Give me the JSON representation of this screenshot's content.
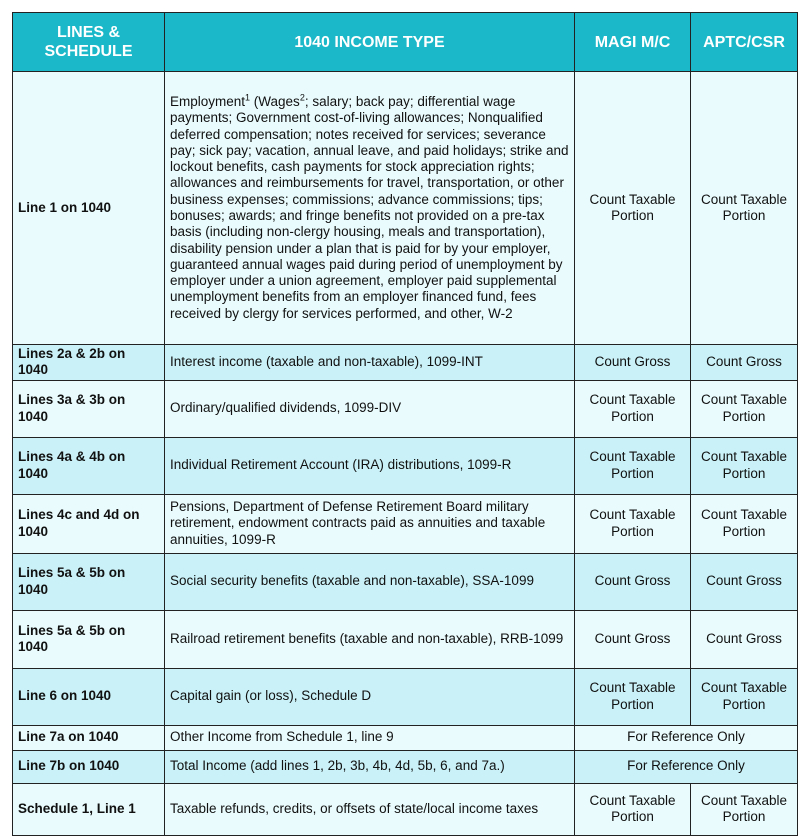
{
  "header": {
    "col1": "LINES & SCHEDULE",
    "col2": "1040 INCOME TYPE",
    "col3": "MAGI M/C",
    "col4": "APTC/CSR"
  },
  "colors": {
    "header_bg": "#1ab8c8",
    "row_light": "#e9fbfd",
    "row_dark": "#c9f1f7"
  },
  "row1": {
    "line": "Line 1 on 1040",
    "type_a": "Employment",
    "sup1": "1",
    "type_b": " (Wages",
    "sup2": "2",
    "type_c": "; salary; back pay; differential wage payments; Government cost-of-living allowances; Nonqualified deferred compensation; notes received for services; severance pay; sick pay; vacation, annual leave, and paid holidays; strike and lockout benefits, cash payments for stock appreciation rights; allowances and reimbursements for travel, transportation, or other business expenses; commissions; advance commissions; tips; bonuses; awards; and fringe benefits not provided on a pre-tax basis (including non-clergy housing, meals and transportation), disability pension under a plan that is paid for by your employer, guaranteed annual wages paid during period of unemployment by employer under a union agreement, employer paid supplemental unemployment benefits from an employer financed fund, fees received by clergy for services performed, and other, W-2",
    "magi": "Count Taxable Portion",
    "aptc": "Count Taxable Portion"
  },
  "rows": [
    {
      "line": "Lines 2a & 2b on 1040",
      "type": "Interest income (taxable and non-taxable), 1099-INT",
      "magi": "Count Gross",
      "aptc": "Count Gross"
    },
    {
      "line": "Lines 3a & 3b on 1040",
      "type": "Ordinary/qualified dividends, 1099-DIV",
      "magi": "Count Taxable Portion",
      "aptc": "Count Taxable Portion"
    },
    {
      "line": "Lines 4a & 4b on 1040",
      "type": "Individual Retirement Account (IRA) distributions, 1099-R",
      "magi": "Count Taxable Portion",
      "aptc": "Count Taxable Portion"
    },
    {
      "line": "Lines 4c and 4d on 1040",
      "type": "Pensions, Department of Defense Retirement Board military retirement, endowment contracts paid as annuities and taxable annuities, 1099-R",
      "magi": "Count Taxable Portion",
      "aptc": "Count Taxable Portion"
    },
    {
      "line": "Lines 5a & 5b on 1040",
      "type": "Social security benefits (taxable and non-taxable), SSA-1099",
      "magi": "Count Gross",
      "aptc": "Count Gross"
    },
    {
      "line": "Lines 5a & 5b on 1040",
      "type": "Railroad retirement benefits (taxable and non-taxable), RRB-1099",
      "magi": "Count Gross",
      "aptc": "Count Gross"
    },
    {
      "line": "Line 6 on 1040",
      "type": "Capital gain (or loss), Schedule D",
      "magi": "Count Taxable Portion",
      "aptc": "Count Taxable Portion"
    }
  ],
  "ref_rows": [
    {
      "line": "Line 7a on 1040",
      "type": "Other Income from Schedule 1, line 9",
      "merged": "For Reference Only"
    },
    {
      "line": "Line 7b on 1040",
      "type": "Total Income (add lines 1, 2b, 3b, 4b, 4d, 5b, 6, and 7a.)",
      "merged": "For Reference Only"
    }
  ],
  "last_row": {
    "line": "Schedule 1, Line 1",
    "type": "Taxable refunds, credits, or offsets of state/local income taxes",
    "magi": "Count Taxable Portion",
    "aptc": "Count Taxable Portion"
  }
}
